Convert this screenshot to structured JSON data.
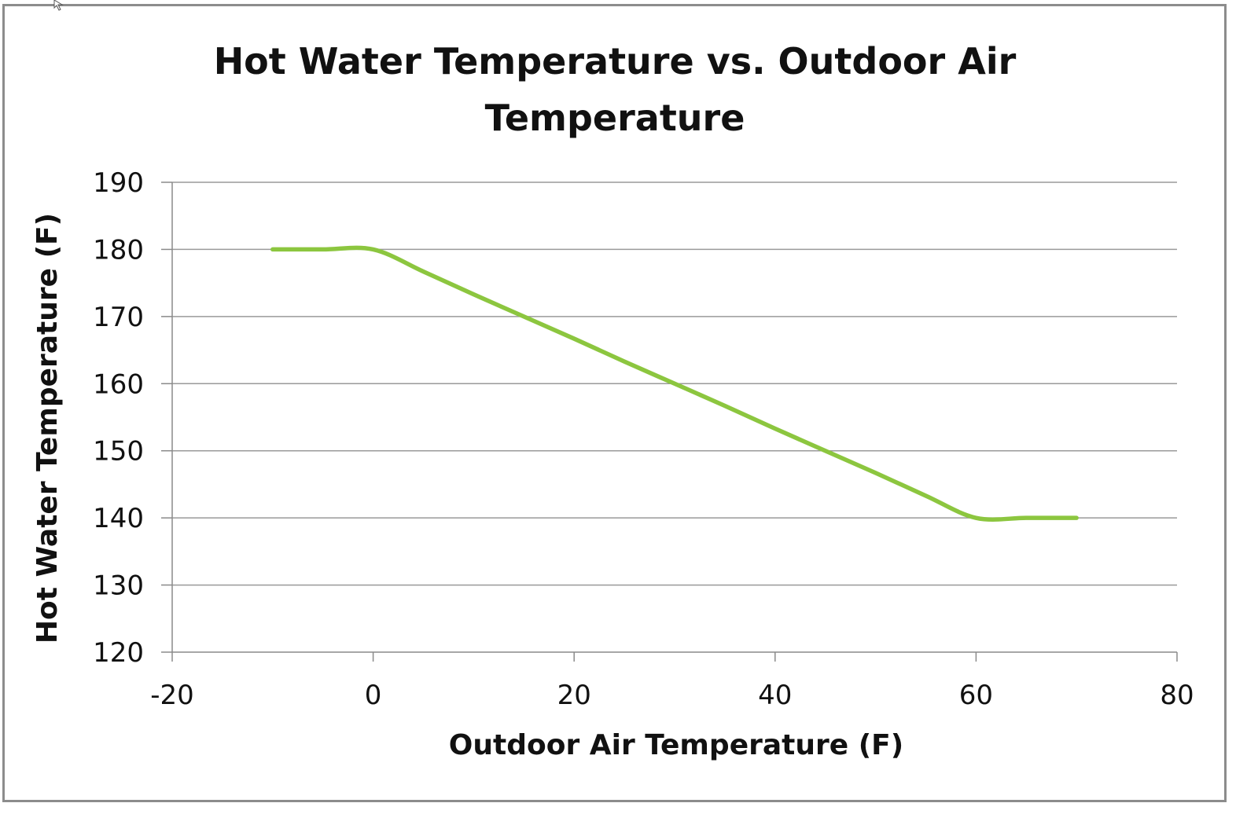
{
  "chart_data": {
    "type": "line",
    "title_lines": [
      "Hot Water Temperature vs. Outdoor Air",
      "Temperature"
    ],
    "xlabel": "Outdoor Air Temperature (F)",
    "ylabel": "Hot Water Temperature (F)",
    "xlim": [
      -20,
      80
    ],
    "ylim": [
      120,
      190
    ],
    "x_ticks": [
      -20,
      0,
      20,
      40,
      60,
      80
    ],
    "y_ticks": [
      120,
      130,
      140,
      150,
      160,
      170,
      180,
      190
    ],
    "x_tick_labels": [
      "-20",
      "0",
      "20",
      "40",
      "60",
      "80"
    ],
    "y_tick_labels": [
      "120",
      "130",
      "140",
      "150",
      "160",
      "170",
      "180",
      "190"
    ],
    "grid": "horizontal",
    "series": [
      {
        "name": "Hot Water Temperature",
        "color": "#8cc63f",
        "smooth": true,
        "x": [
          -10,
          -5,
          0,
          5,
          10,
          15,
          20,
          25,
          30,
          35,
          40,
          45,
          50,
          55,
          60,
          65,
          70
        ],
        "y": [
          180,
          180,
          180,
          176.7,
          173.3,
          170,
          166.7,
          163.3,
          160,
          156.7,
          153.3,
          150,
          146.7,
          143.3,
          140,
          140,
          140
        ]
      }
    ]
  },
  "colors": {
    "gridline": "#9a9a9a",
    "axis": "#8a8a8a",
    "frame": "#8c8c8c",
    "text": "#111111"
  }
}
